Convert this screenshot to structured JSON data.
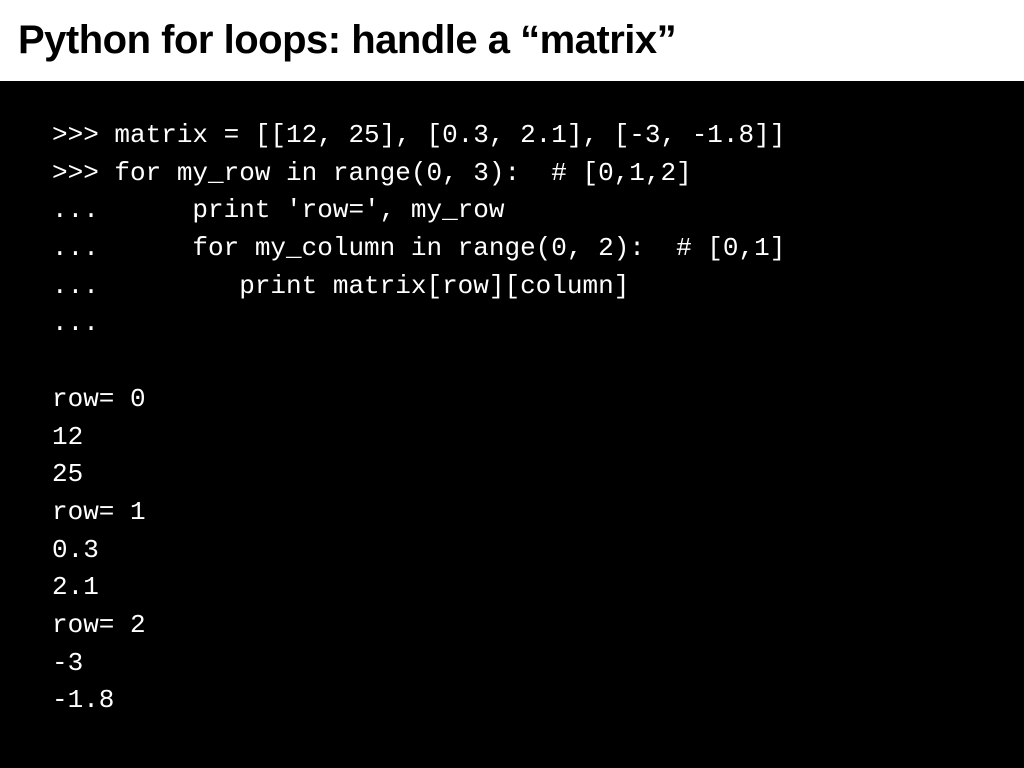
{
  "slide": {
    "title": "Python for loops: handle a “matrix”",
    "title_fontsize": 40,
    "title_color": "#000000",
    "title_bg": "#ffffff",
    "code_bg": "#000000",
    "code_fg": "#ffffff",
    "code_font": "Courier New",
    "code_fontsize": 26,
    "code_lines": [
      ">>> matrix = [[12, 25], [0.3, 2.1], [-3, -1.8]]",
      ">>> for my_row in range(0, 3):  # [0,1,2]",
      "...      print 'row=', my_row",
      "...      for my_column in range(0, 2):  # [0,1]",
      "...         print matrix[row][column]",
      "...",
      "",
      "row= 0",
      "12",
      "25",
      "row= 1",
      "0.3",
      "2.1",
      "row= 2",
      "-3",
      "-1.8"
    ]
  }
}
